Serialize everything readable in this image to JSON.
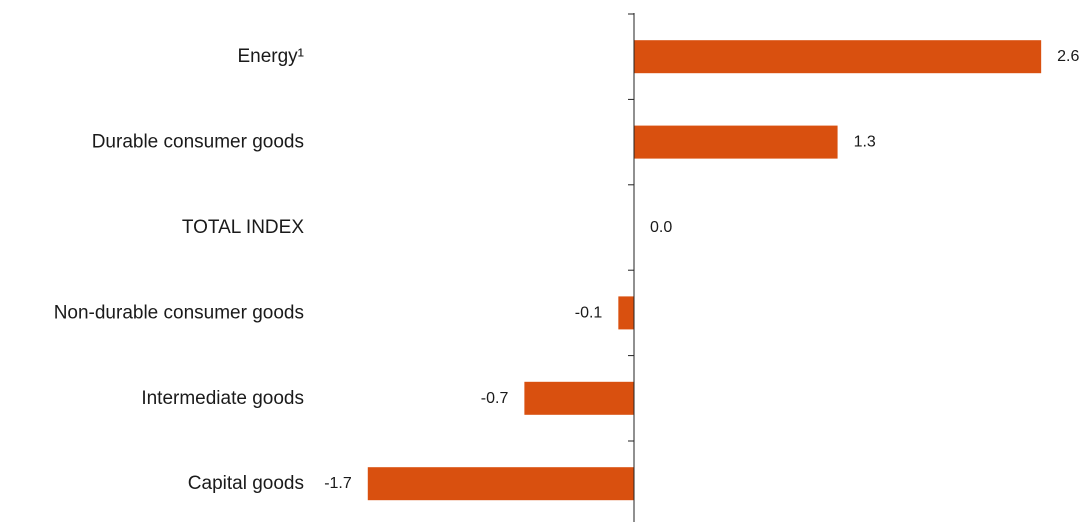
{
  "chart_data": {
    "type": "bar",
    "orientation": "horizontal",
    "categories": [
      "Energy¹",
      "Durable consumer goods",
      "TOTAL INDEX",
      "Non-durable consumer goods",
      "Intermediate goods",
      "Capital goods"
    ],
    "values": [
      2.6,
      1.3,
      0.0,
      -0.1,
      -0.7,
      -1.7
    ],
    "value_labels": [
      "2.6",
      "1.3",
      "0.0",
      "-0.1",
      "-0.7",
      "-1.7"
    ],
    "title": "",
    "xlabel": "",
    "ylabel": "",
    "xlim": [
      -1.7,
      2.6
    ],
    "grid": false,
    "legend": "none",
    "bar_color": "#D9500F"
  }
}
